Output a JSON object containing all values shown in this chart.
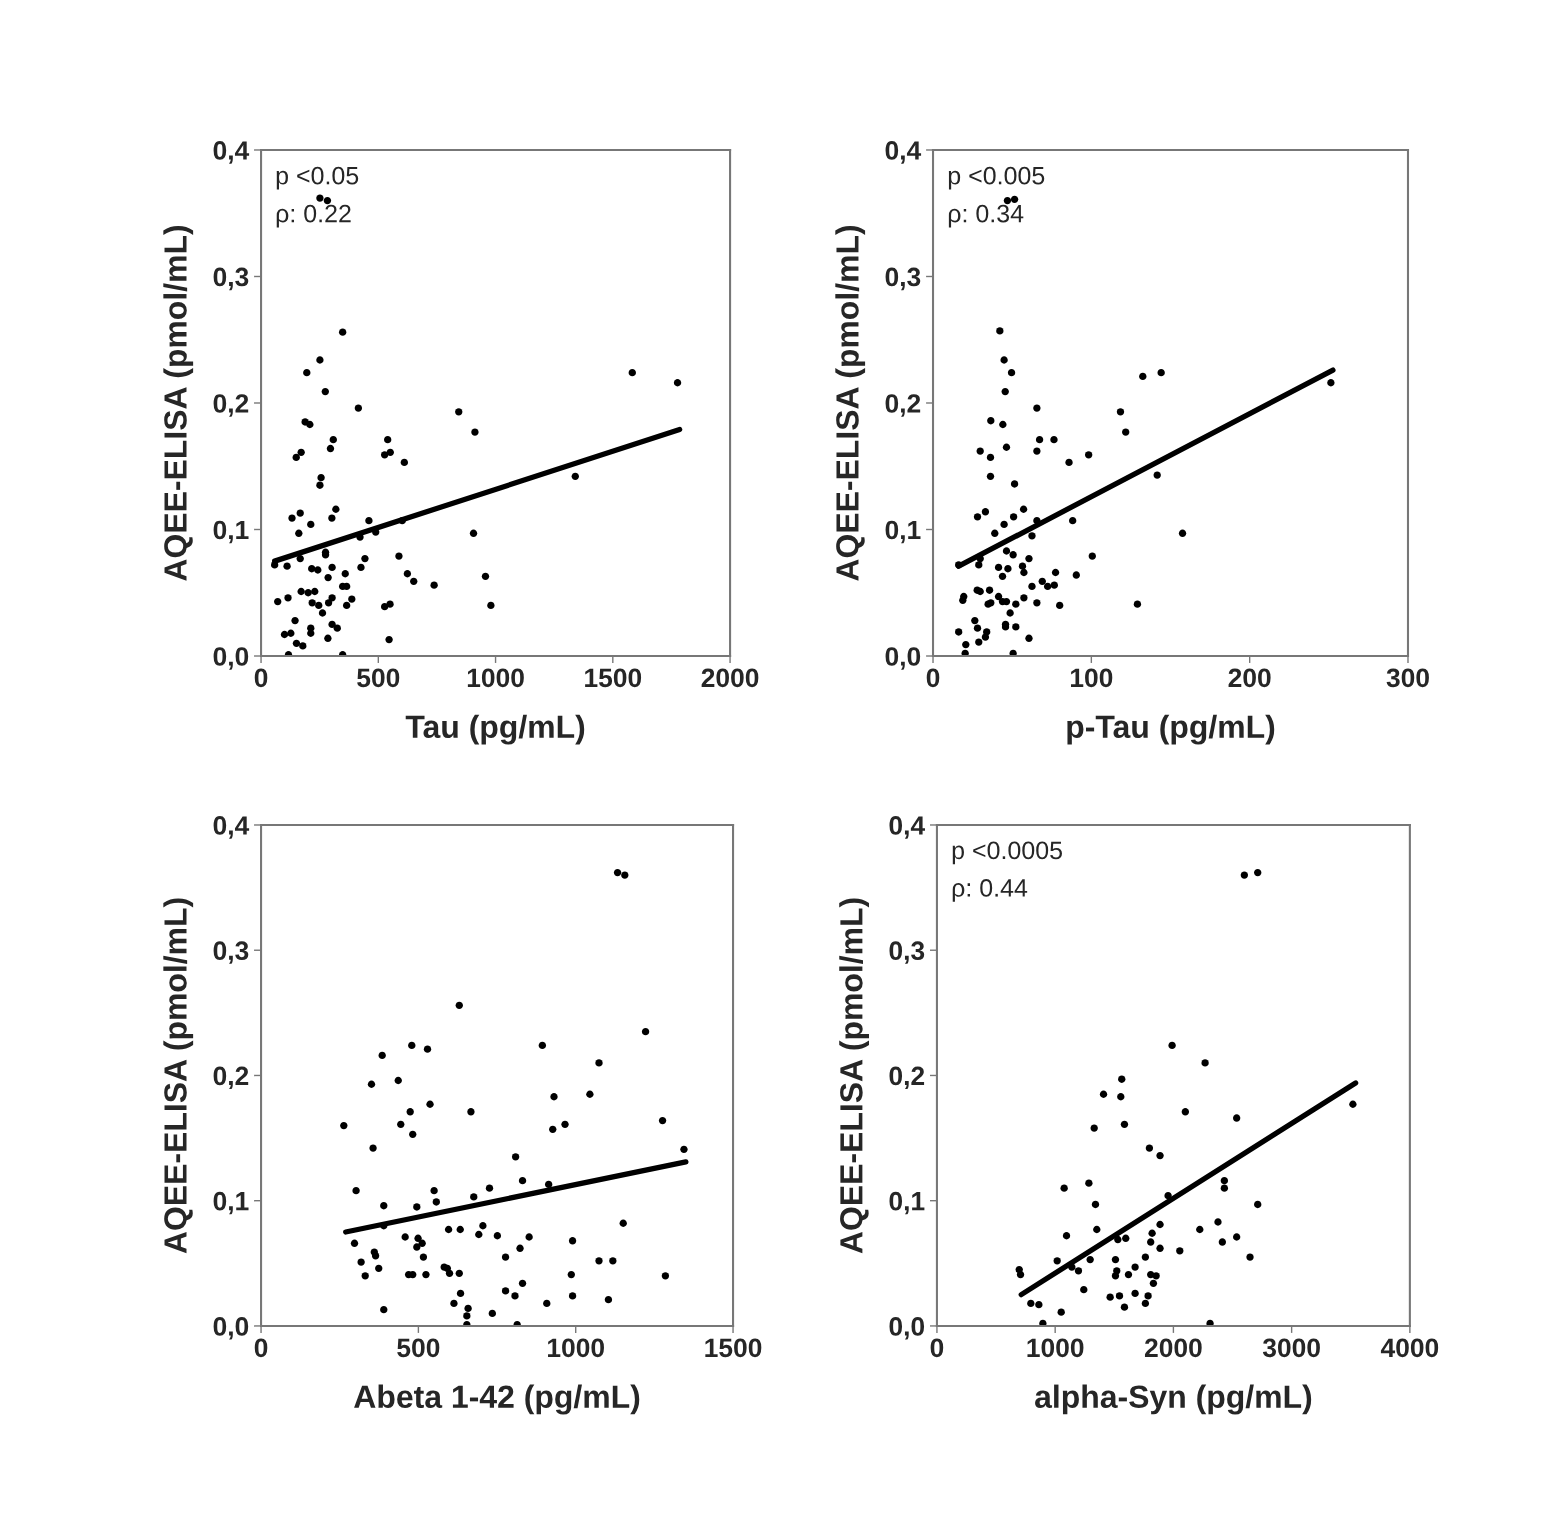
{
  "chart_data": [
    {
      "type": "scatter",
      "xlabel": "Tau (pg/mL)",
      "ylabel": "AQEE-ELISA (pmol/mL)",
      "xlim": [
        0,
        2000
      ],
      "xticks": [
        0,
        500,
        1000,
        1500,
        2000
      ],
      "ylim": [
        0,
        0.4
      ],
      "yticks": [
        {
          "value": 0,
          "label": "0,0"
        },
        {
          "value": 0.1,
          "label": "0,1"
        },
        {
          "value": 0.2,
          "label": "0,2"
        },
        {
          "value": 0.3,
          "label": "0,3"
        },
        {
          "value": 0.4,
          "label": "0,4"
        }
      ],
      "annotations": [
        "p <0.05",
        "ρ: 0.22"
      ],
      "grid": false,
      "series": [
        {
          "type": "scatter",
          "marker": "circle",
          "color": "#000000",
          "x": [
            251,
            283,
            348,
            251,
            195,
            274,
            415,
            188,
            208,
            308,
            296,
            171,
            150,
            256,
            251,
            540,
            551,
            527,
            611,
            843,
            912,
            1583,
            1776,
            1340,
            906,
            957,
            980,
            738,
            651,
            624,
            588,
            602,
            489,
            460,
            422,
            443,
            426,
            527,
            550,
            546,
            348,
            319,
            302,
            167,
            132,
            212,
            161,
            275,
            275,
            167,
            111,
            58,
            216,
            242,
            303,
            286,
            359,
            348,
            365,
            387,
            365,
            171,
            201,
            229,
            218,
            246,
            288,
            303,
            262,
            115,
            71,
            145,
            100,
            127,
            212,
            212,
            303,
            325,
            151,
            178,
            285,
            117
          ],
          "values": [
            0.362,
            0.36,
            0.256,
            0.234,
            0.224,
            0.209,
            0.196,
            0.185,
            0.183,
            0.171,
            0.164,
            0.161,
            0.157,
            0.141,
            0.135,
            0.171,
            0.161,
            0.159,
            0.153,
            0.193,
            0.177,
            0.224,
            0.216,
            0.142,
            0.097,
            0.063,
            0.04,
            0.056,
            0.059,
            0.065,
            0.079,
            0.107,
            0.098,
            0.107,
            0.094,
            0.077,
            0.07,
            0.039,
            0.041,
            0.013,
            0.001,
            0.116,
            0.109,
            0.113,
            0.109,
            0.104,
            0.097,
            0.082,
            0.08,
            0.077,
            0.071,
            0.072,
            0.069,
            0.068,
            0.07,
            0.062,
            0.065,
            0.055,
            0.055,
            0.045,
            0.04,
            0.051,
            0.05,
            0.051,
            0.042,
            0.04,
            0.042,
            0.046,
            0.034,
            0.046,
            0.043,
            0.028,
            0.017,
            0.018,
            0.022,
            0.018,
            0.025,
            0.022,
            0.01,
            0.008,
            0.014,
            0.001
          ]
        },
        {
          "type": "line",
          "color": "#000000",
          "x": [
            58,
            1785
          ],
          "values": [
            0.075,
            0.179
          ]
        }
      ]
    },
    {
      "type": "scatter",
      "xlabel": "p-Tau (pg/mL)",
      "ylabel": "AQEE-ELISA (pmol/mL)",
      "xlim": [
        0,
        300
      ],
      "xticks": [
        0,
        100,
        200,
        300
      ],
      "ylim": [
        0,
        0.4
      ],
      "yticks": [
        {
          "value": 0,
          "label": "0,0"
        },
        {
          "value": 0.1,
          "label": "0,1"
        },
        {
          "value": 0.2,
          "label": "0,2"
        },
        {
          "value": 0.3,
          "label": "0,3"
        },
        {
          "value": 0.4,
          "label": "0,4"
        }
      ],
      "annotations": [
        "p <0.005",
        "ρ: 0.34"
      ],
      "grid": false,
      "series": [
        {
          "type": "scatter",
          "marker": "circle",
          "color": "#000000",
          "x": [
            47,
            51.5,
            42.2,
            44.9,
            49.6,
            45.6,
            65.6,
            36.5,
            44.1,
            46.4,
            29.8,
            36.3,
            36.3,
            51.5,
            67.3,
            76.4,
            65.6,
            85.9,
            98.3,
            118.4,
            121.7,
            132.5,
            144.1,
            251.3,
            141.6,
            157.6,
            100.6,
            129.1,
            88.2,
            90.5,
            80,
            77.4,
            76.6,
            69,
            72.4,
            62.5,
            65.6,
            57.4,
            56.5,
            60.6,
            62.5,
            65.6,
            57.2,
            50.9,
            44.9,
            33.1,
            28.1,
            39,
            46.4,
            50.6,
            28.9,
            29.8,
            41.4,
            47.3,
            43.9,
            16.2,
            27.9,
            29.8,
            35.7,
            41.4,
            43.9,
            46.4,
            34.8,
            36.5,
            52.3,
            57.4,
            48.7,
            19.4,
            18.8,
            26.4,
            28.1,
            33.9,
            33.1,
            45.8,
            45.8,
            52.3,
            16.2,
            28.9,
            20.7,
            20.3,
            50.6,
            60.6
          ],
          "values": [
            0.36,
            0.361,
            0.257,
            0.234,
            0.224,
            0.209,
            0.196,
            0.186,
            0.183,
            0.165,
            0.162,
            0.157,
            0.142,
            0.136,
            0.171,
            0.171,
            0.162,
            0.153,
            0.159,
            0.193,
            0.177,
            0.221,
            0.224,
            0.216,
            0.143,
            0.097,
            0.079,
            0.041,
            0.107,
            0.064,
            0.04,
            0.066,
            0.056,
            0.059,
            0.055,
            0.055,
            0.042,
            0.066,
            0.071,
            0.077,
            0.095,
            0.107,
            0.116,
            0.11,
            0.104,
            0.114,
            0.11,
            0.097,
            0.083,
            0.08,
            0.072,
            0.077,
            0.07,
            0.069,
            0.063,
            0.072,
            0.052,
            0.051,
            0.052,
            0.047,
            0.043,
            0.043,
            0.041,
            0.042,
            0.041,
            0.046,
            0.034,
            0.047,
            0.044,
            0.028,
            0.022,
            0.019,
            0.015,
            0.025,
            0.023,
            0.023,
            0.019,
            0.011,
            0.009,
            0.002,
            0.002,
            0.014
          ]
        },
        {
          "type": "line",
          "color": "#000000",
          "x": [
            16.2,
            252.6
          ],
          "values": [
            0.071,
            0.226
          ]
        }
      ]
    },
    {
      "type": "scatter",
      "xlabel": "Abeta 1-42 (pg/mL)",
      "ylabel": "AQEE-ELISA (pmol/mL)",
      "xlim": [
        0,
        1500
      ],
      "xticks": [
        0,
        500,
        1000,
        1500
      ],
      "ylim": [
        0,
        0.4
      ],
      "yticks": [
        {
          "value": 0,
          "label": "0,0"
        },
        {
          "value": 0.1,
          "label": "0,1"
        },
        {
          "value": 0.2,
          "label": "0,2"
        },
        {
          "value": 0.3,
          "label": "0,3"
        },
        {
          "value": 0.4,
          "label": "0,4"
        }
      ],
      "grid": false,
      "series": [
        {
          "type": "scatter",
          "marker": "circle",
          "color": "#000000",
          "x": [
            1133,
            1156,
            630,
            1222,
            479,
            529,
            894,
            385,
            1074,
            351,
            436,
            1045,
            931,
            537,
            474,
            667,
            444,
            482,
            263,
            927,
            966,
            1276,
            356,
            1344,
            809,
            831,
            914,
            302,
            550,
            557,
            726,
            676,
            390,
            495,
            390,
            596,
            633,
            705,
            692,
            751,
            852,
            1151,
            990,
            458,
            499,
            512,
            495,
            297,
            360,
            364,
            516,
            777,
            823,
            318,
            374,
            331,
            469,
            482,
            524,
            582,
            592,
            599,
            630,
            1074,
            1118,
            986,
            1285,
            831,
            777,
            807,
            990,
            1104,
            908,
            634,
            613,
            658,
            654,
            735,
            390,
            654,
            814
          ],
          "values": [
            0.362,
            0.36,
            0.256,
            0.235,
            0.224,
            0.221,
            0.224,
            0.216,
            0.21,
            0.193,
            0.196,
            0.185,
            0.183,
            0.177,
            0.171,
            0.171,
            0.161,
            0.153,
            0.16,
            0.157,
            0.161,
            0.164,
            0.142,
            0.141,
            0.135,
            0.116,
            0.113,
            0.108,
            0.108,
            0.099,
            0.11,
            0.103,
            0.096,
            0.095,
            0.08,
            0.077,
            0.077,
            0.08,
            0.073,
            0.072,
            0.071,
            0.082,
            0.068,
            0.071,
            0.07,
            0.066,
            0.063,
            0.066,
            0.059,
            0.056,
            0.055,
            0.055,
            0.062,
            0.051,
            0.046,
            0.04,
            0.041,
            0.041,
            0.041,
            0.047,
            0.046,
            0.042,
            0.042,
            0.052,
            0.052,
            0.041,
            0.04,
            0.034,
            0.028,
            0.024,
            0.024,
            0.021,
            0.018,
            0.026,
            0.018,
            0.014,
            0.008,
            0.01,
            0.013,
            0.001,
            0.001
          ]
        },
        {
          "type": "line",
          "color": "#000000",
          "x": [
            269,
            1350
          ],
          "values": [
            0.075,
            0.131
          ]
        }
      ]
    },
    {
      "type": "scatter",
      "xlabel": "alpha-Syn (pg/mL)",
      "ylabel": "AQEE-ELISA (pmol/mL)",
      "xlim": [
        0,
        4000
      ],
      "xticks": [
        0,
        1000,
        2000,
        3000,
        4000
      ],
      "ylim": [
        0,
        0.4
      ],
      "yticks": [
        {
          "value": 0,
          "label": "0,0"
        },
        {
          "value": 0.1,
          "label": "0,1"
        },
        {
          "value": 0.2,
          "label": "0,2"
        },
        {
          "value": 0.3,
          "label": "0,3"
        },
        {
          "value": 0.4,
          "label": "0,4"
        }
      ],
      "annotations": [
        "p <0.0005",
        "ρ: 0.44"
      ],
      "grid": false,
      "series": [
        {
          "type": "scatter",
          "marker": "circle",
          "color": "#000000",
          "x": [
            2600,
            2713,
            1989,
            2268,
            1563,
            1409,
            1555,
            2101,
            2535,
            3518,
            1586,
            1330,
            1797,
            1887,
            1285,
            1076,
            2431,
            2431,
            1955,
            1341,
            2713,
            1352,
            1887,
            2377,
            2223,
            2535,
            1096,
            1530,
            1597,
            1820,
            1808,
            1887,
            2054,
            2414,
            2648,
            1763,
            1510,
            1296,
            1017,
            1141,
            1197,
            696,
            707,
            1521,
            1510,
            1620,
            1676,
            1808,
            1854,
            1831,
            1242,
            1465,
            1544,
            1676,
            1786,
            1763,
            1586,
            794,
            862,
            1051,
            896,
            2310
          ],
          "values": [
            0.36,
            0.362,
            0.224,
            0.21,
            0.197,
            0.185,
            0.183,
            0.171,
            0.166,
            0.177,
            0.161,
            0.158,
            0.142,
            0.136,
            0.114,
            0.11,
            0.116,
            0.11,
            0.104,
            0.097,
            0.097,
            0.077,
            0.081,
            0.083,
            0.077,
            0.071,
            0.072,
            0.069,
            0.07,
            0.074,
            0.067,
            0.062,
            0.06,
            0.067,
            0.055,
            0.055,
            0.053,
            0.053,
            0.052,
            0.047,
            0.044,
            0.045,
            0.041,
            0.044,
            0.04,
            0.041,
            0.047,
            0.041,
            0.04,
            0.034,
            0.029,
            0.023,
            0.024,
            0.026,
            0.024,
            0.018,
            0.015,
            0.018,
            0.017,
            0.011,
            0.002,
            0.002
          ]
        },
        {
          "type": "line",
          "color": "#000000",
          "x": [
            713,
            3541
          ],
          "values": [
            0.025,
            0.194
          ]
        }
      ]
    }
  ]
}
